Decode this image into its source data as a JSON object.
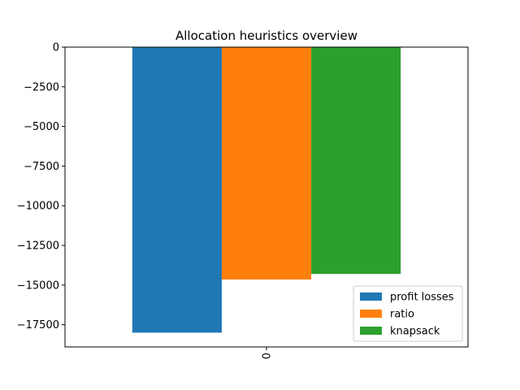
{
  "chart_data": {
    "type": "bar",
    "title": "Allocation heuristics overview",
    "xlabel": "",
    "ylabel": "",
    "categories": [
      "0"
    ],
    "series": [
      {
        "name": "profit losses",
        "values": [
          -18000
        ],
        "color": "#1f77b4"
      },
      {
        "name": "ratio",
        "values": [
          -14650
        ],
        "color": "#ff7f0e"
      },
      {
        "name": "knapsack",
        "values": [
          -14300
        ],
        "color": "#2ca02c"
      }
    ],
    "ylim": [
      -18900,
      0
    ],
    "yticks": [
      0,
      -2500,
      -5000,
      -7500,
      -10000,
      -12500,
      -15000,
      -17500
    ],
    "ytick_labels": [
      "0",
      "−2500",
      "−5000",
      "−7500",
      "−10000",
      "−12500",
      "−15000",
      "−17500"
    ],
    "x_tick_rotation": "vertical",
    "grid": false,
    "legend_position": "lower right"
  }
}
